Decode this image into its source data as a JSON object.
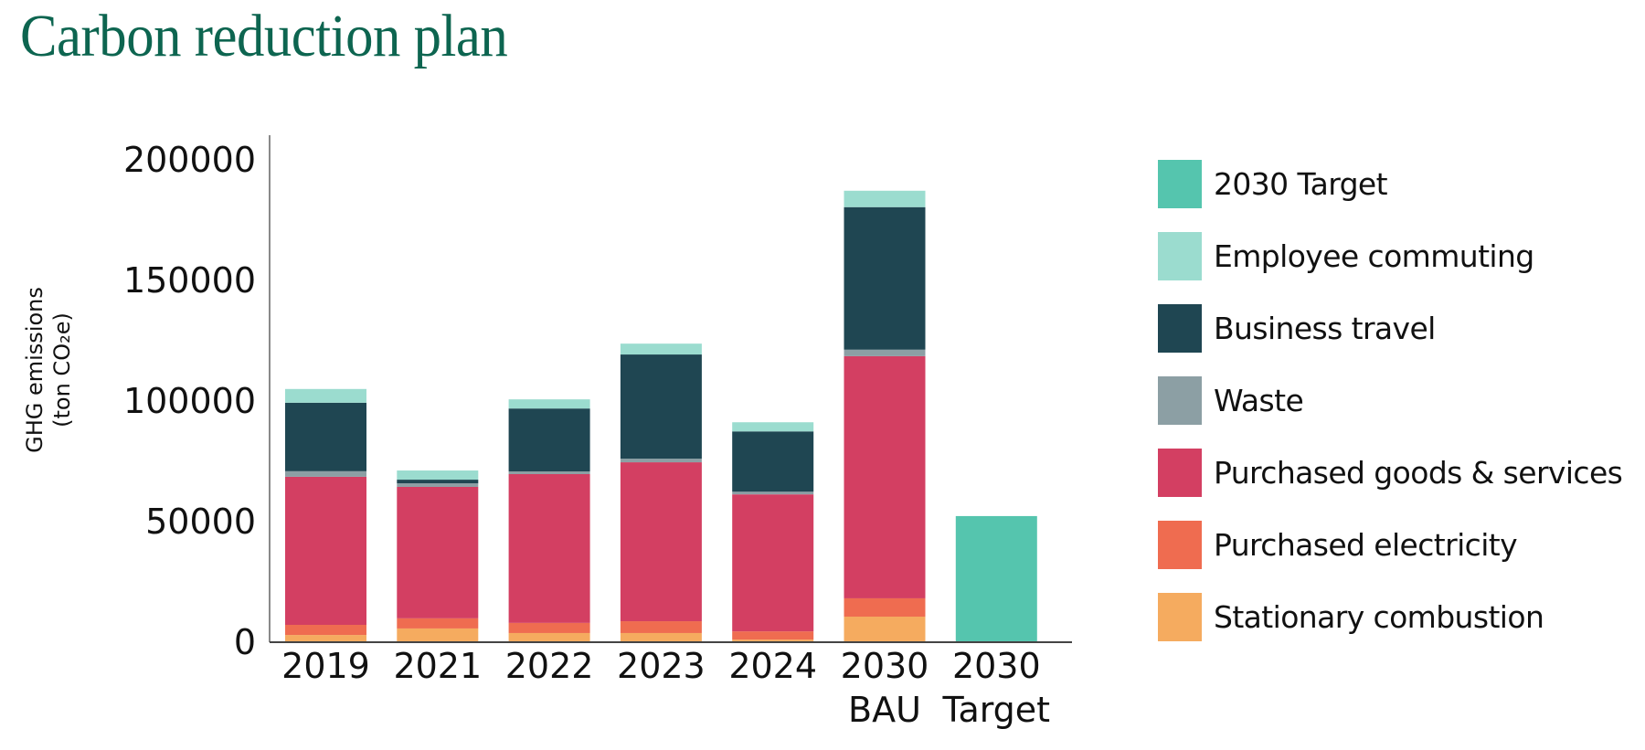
{
  "page": {
    "title": "Carbon reduction plan"
  },
  "chart_data": {
    "type": "bar",
    "stacked": true,
    "title": "Carbon reduction plan",
    "xlabel": "",
    "ylabel_lines": [
      "GHG emissions",
      "(ton CO₂e)"
    ],
    "ylabel": "GHG emissions (ton CO2e)",
    "ylim": [
      0,
      200000
    ],
    "yticks": [
      0,
      50000,
      100000,
      150000,
      200000
    ],
    "ytick_labels": [
      "0",
      "50000",
      "100000",
      "150000",
      "200000"
    ],
    "grid": false,
    "legend_position": "right",
    "categories": [
      "2019",
      "2021",
      "2022",
      "2023",
      "2024",
      "2030 BAU",
      "2030 Target"
    ],
    "category_label_lines": [
      [
        "2019"
      ],
      [
        "2021"
      ],
      [
        "2022"
      ],
      [
        "2023"
      ],
      [
        "2024"
      ],
      [
        "2030",
        "BAU"
      ],
      [
        "2030",
        "Target"
      ]
    ],
    "series": [
      {
        "name": "Stationary combustion",
        "color": "#f5ab5f",
        "values": [
          3000,
          5700,
          3800,
          3800,
          1100,
          10600,
          0
        ]
      },
      {
        "name": "Purchased electricity",
        "color": "#ef6c50",
        "values": [
          4200,
          4200,
          4200,
          4900,
          3400,
          7600,
          0
        ]
      },
      {
        "name": "Purchased goods & services",
        "color": "#d33f62",
        "values": [
          61400,
          54500,
          61700,
          65900,
          56800,
          100400,
          0
        ]
      },
      {
        "name": "Waste",
        "color": "#8c9fa4",
        "values": [
          2300,
          1500,
          1100,
          1500,
          1100,
          2700,
          0
        ]
      },
      {
        "name": "Business travel",
        "color": "#1f4652",
        "values": [
          28400,
          1500,
          26100,
          43200,
          25000,
          59100,
          0
        ]
      },
      {
        "name": "Employee commuting",
        "color": "#9bdccf",
        "values": [
          5700,
          3800,
          3800,
          4500,
          3800,
          6800,
          0
        ]
      },
      {
        "name": "2030 Target",
        "color": "#55c5ae",
        "values": [
          0,
          0,
          0,
          0,
          0,
          0,
          52300
        ]
      }
    ],
    "legend_order": [
      "2030 Target",
      "Employee commuting",
      "Business travel",
      "Waste",
      "Purchased goods & services",
      "Purchased electricity",
      "Stationary combustion"
    ]
  }
}
